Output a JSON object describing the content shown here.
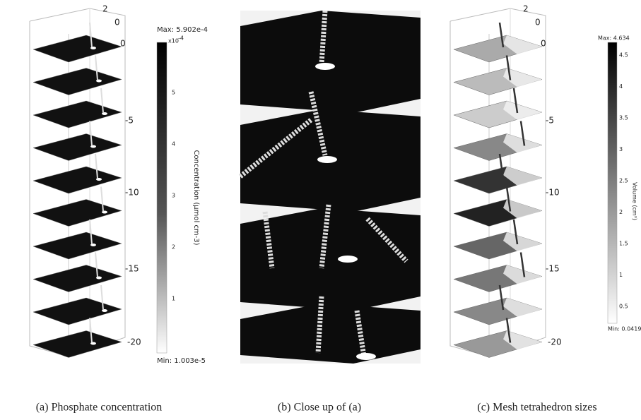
{
  "panels": [
    {
      "caption": "(a) Phosphate concentration",
      "axis_ticks": [
        "2",
        "0",
        "0",
        "-5",
        "-10",
        "-15",
        "-20"
      ],
      "colorbar": {
        "max": "Max: 5.902e-4",
        "min": "Min: 1.003e-5",
        "multiplier": "x10",
        "exponent": "-4",
        "ticks": [
          "5",
          "4",
          "3",
          "2",
          "1"
        ],
        "label": "Concentration (μmol cm-3)"
      }
    },
    {
      "caption": "(b) Close up of (a)"
    },
    {
      "caption": "(c) Mesh tetrahedron sizes",
      "axis_ticks": [
        "2",
        "0",
        "0",
        "-5",
        "-10",
        "-15",
        "-20"
      ],
      "colorbar": {
        "max": "Max: 4.634",
        "min": "Min: 0.0419",
        "ticks": [
          "4.5",
          "4",
          "3.5",
          "3",
          "2.5",
          "2",
          "1.5",
          "1",
          "0.5"
        ],
        "label": "Volume (cm³)"
      }
    }
  ]
}
